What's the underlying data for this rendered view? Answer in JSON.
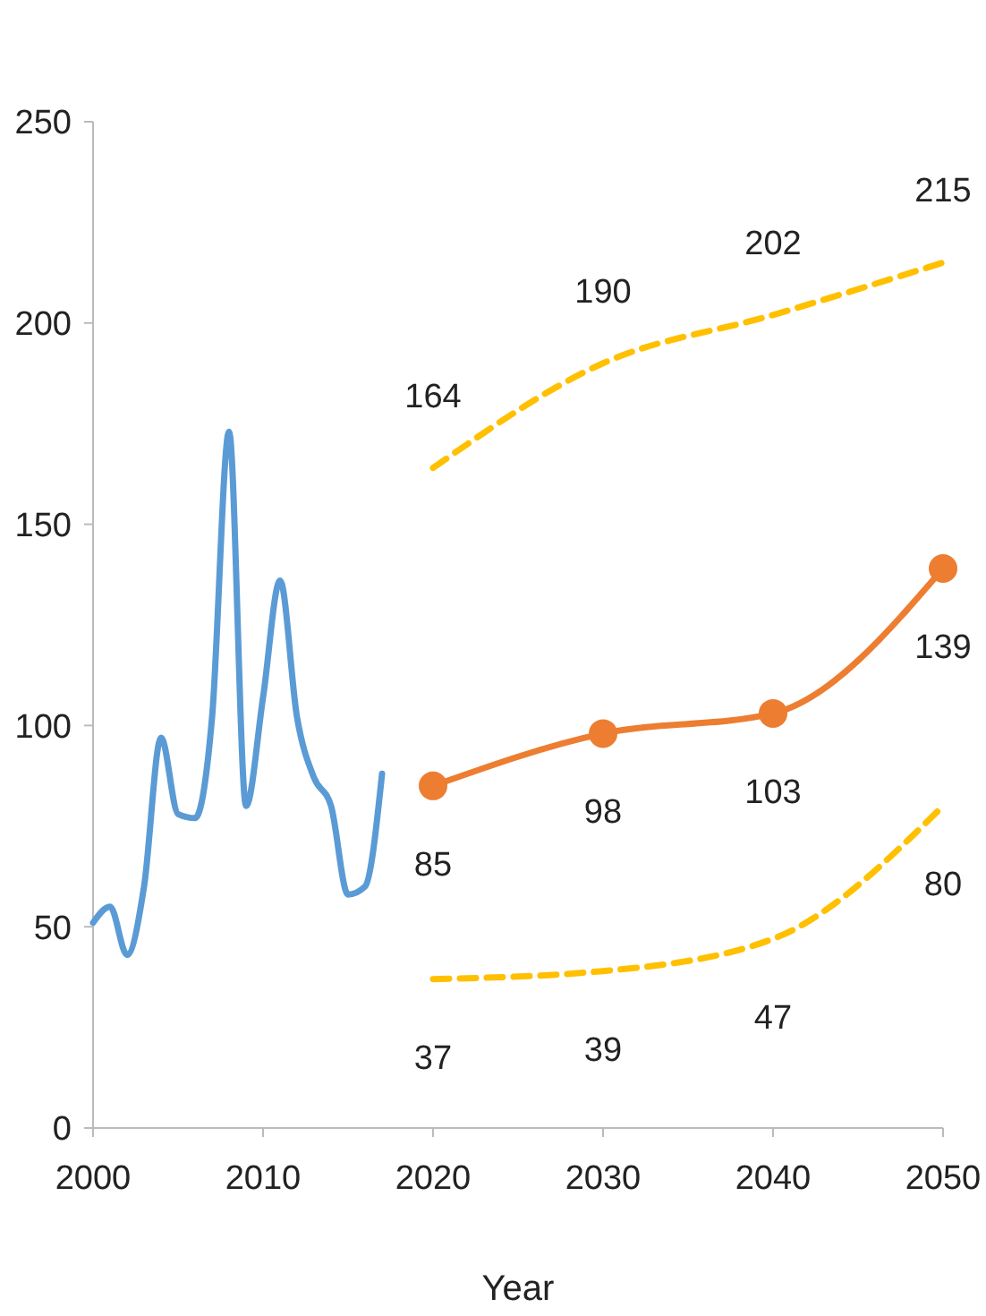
{
  "chart_data": {
    "type": "line",
    "xlabel": "Year",
    "xlim": [
      2000,
      2050
    ],
    "xticks": [
      2000,
      2010,
      2020,
      2030,
      2040,
      2050
    ],
    "ylim": [
      0,
      250
    ],
    "yticks": [
      0,
      50,
      100,
      150,
      200,
      250
    ],
    "grid": false,
    "series": [
      {
        "color": "#5b9bd5",
        "marker": "none",
        "line_style": "solid",
        "x": [
          2000,
          2001,
          2002,
          2003,
          2004,
          2005,
          2006,
          2007,
          2008,
          2009,
          2010,
          2011,
          2012,
          2013,
          2014,
          2015,
          2016,
          2017
        ],
        "values": [
          51,
          55,
          43,
          60,
          97,
          78,
          77,
          102,
          173,
          80,
          107,
          136,
          102,
          87,
          80,
          58,
          60,
          88
        ]
      },
      {
        "color": "#ffc000",
        "marker": "none",
        "line_style": "dashed",
        "data_labels": true,
        "x": [
          2020,
          2030,
          2040,
          2050
        ],
        "values": [
          164,
          190,
          202,
          215
        ]
      },
      {
        "color": "#ed7d31",
        "marker": "circle",
        "line_style": "solid",
        "data_labels": true,
        "x": [
          2020,
          2030,
          2040,
          2050
        ],
        "values": [
          85,
          98,
          103,
          139
        ]
      },
      {
        "color": "#ffc000",
        "marker": "none",
        "line_style": "dashed",
        "data_labels": true,
        "x": [
          2020,
          2030,
          2040,
          2050
        ],
        "values": [
          37,
          39,
          47,
          80
        ]
      }
    ]
  }
}
